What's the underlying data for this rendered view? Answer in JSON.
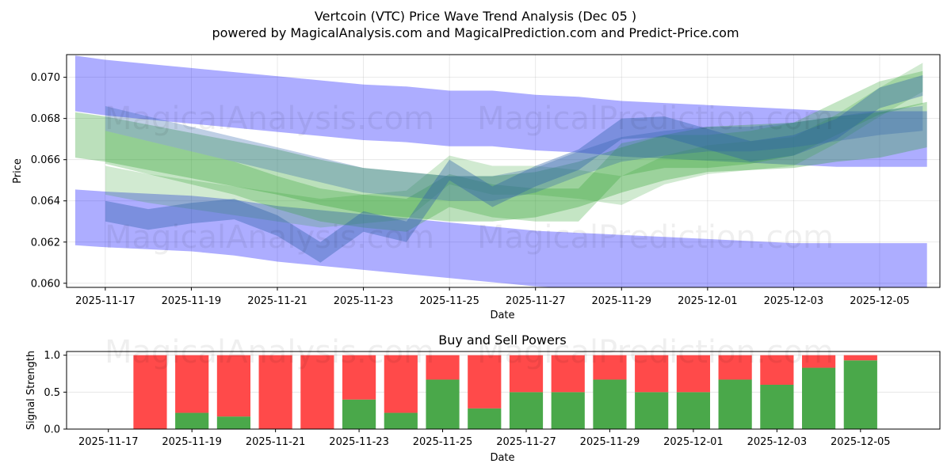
{
  "chart_data": [
    {
      "type": "area",
      "title": "Vertcoin (VTC) Price Wave Trend Analysis (Dec 05 )",
      "subtitle": "powered by MagicalAnalysis.com and MagicalPrediction.com and Predict-Price.com",
      "xlabel": "Date",
      "ylabel": "Price",
      "grid": true,
      "ylim": [
        0.0598,
        0.0711
      ],
      "xlim_days": [
        -0.9,
        19.4
      ],
      "x_start_date": "2025-11-17",
      "x_ticks": [
        "2025-11-17",
        "2025-11-19",
        "2025-11-21",
        "2025-11-23",
        "2025-11-25",
        "2025-11-27",
        "2025-11-29",
        "2025-12-01",
        "2025-12-03",
        "2025-12-05"
      ],
      "y_ticks": [
        "0.060",
        "0.062",
        "0.064",
        "0.066",
        "0.068",
        "0.070"
      ],
      "series": [
        {
          "name": "upper channel",
          "color": "#0000ff",
          "opacity": 0.32,
          "width": 0.0027,
          "x": [
            -0.7,
            0,
            1,
            2,
            3,
            4,
            5,
            6,
            7,
            8,
            9,
            10,
            11,
            12,
            13,
            14,
            15,
            16,
            17,
            18,
            19.1
          ],
          "y": [
            0.0697,
            0.0695,
            0.0693,
            0.0691,
            0.0689,
            0.0687,
            0.0685,
            0.0683,
            0.0682,
            0.068,
            0.068,
            0.0678,
            0.0677,
            0.0675,
            0.0674,
            0.0673,
            0.0672,
            0.0671,
            0.067,
            0.067,
            0.067
          ]
        },
        {
          "name": "lower channel",
          "color": "#0000ff",
          "opacity": 0.32,
          "width": 0.0027,
          "x": [
            -0.7,
            0,
            1,
            2,
            3,
            4,
            5,
            6,
            7,
            8,
            9,
            10,
            11,
            12,
            13,
            14,
            15,
            16,
            17,
            18,
            19.1
          ],
          "y": [
            0.0632,
            0.0631,
            0.063,
            0.0629,
            0.0627,
            0.0624,
            0.0622,
            0.062,
            0.0618,
            0.0616,
            0.0614,
            0.0612,
            0.0611,
            0.061,
            0.0609,
            0.0608,
            0.0607,
            0.0606,
            0.0606,
            0.0606,
            0.0606
          ]
        },
        {
          "name": "green trend",
          "color": "#2ca02c",
          "opacity": 0.32,
          "width": 0.0022,
          "x": [
            -0.7,
            0,
            1,
            2,
            3,
            4,
            5,
            6,
            7,
            8,
            9,
            10,
            11,
            12,
            13,
            14,
            15,
            16,
            17,
            18,
            19.1
          ],
          "y": [
            0.0672,
            0.067,
            0.0666,
            0.0662,
            0.0658,
            0.0654,
            0.0649,
            0.0645,
            0.0643,
            0.0641,
            0.0641,
            0.0643,
            0.0648,
            0.0655,
            0.0661,
            0.0665,
            0.0666,
            0.0667,
            0.067,
            0.0672,
            0.0677
          ]
        },
        {
          "name": "green wave",
          "color": "#2ca02c",
          "opacity": 0.28,
          "width": 0.0016,
          "x": [
            0,
            1,
            2,
            3,
            4,
            5,
            6,
            7,
            8,
            9,
            10,
            11,
            12,
            13,
            14,
            15,
            16,
            17,
            18,
            19
          ],
          "y": [
            0.0666,
            0.0661,
            0.0656,
            0.0651,
            0.0644,
            0.0638,
            0.0635,
            0.0633,
            0.0645,
            0.064,
            0.0638,
            0.0638,
            0.066,
            0.0664,
            0.0664,
            0.0666,
            0.067,
            0.068,
            0.069,
            0.0695
          ]
        },
        {
          "name": "green wave 2",
          "color": "#2ca02c",
          "opacity": 0.22,
          "width": 0.0014,
          "x": [
            0,
            1,
            2,
            3,
            4,
            5,
            6,
            7,
            8,
            9,
            10,
            11,
            12,
            13,
            14,
            15,
            16,
            17,
            18,
            19
          ],
          "y": [
            0.065,
            0.0646,
            0.0643,
            0.064,
            0.0637,
            0.0634,
            0.0636,
            0.0638,
            0.0655,
            0.065,
            0.065,
            0.0648,
            0.0645,
            0.0655,
            0.066,
            0.0662,
            0.0664,
            0.0675,
            0.0688,
            0.07
          ]
        },
        {
          "name": "blue wave",
          "color": "#2b5fa8",
          "opacity": 0.38,
          "width": 0.001,
          "x": [
            0,
            1,
            2,
            3,
            4,
            5,
            6,
            7,
            8,
            9,
            10,
            11,
            12,
            13,
            14,
            15,
            16,
            17,
            18,
            19
          ],
          "y": [
            0.0635,
            0.0631,
            0.0634,
            0.0636,
            0.0628,
            0.0615,
            0.063,
            0.0625,
            0.0655,
            0.0642,
            0.0652,
            0.066,
            0.0675,
            0.0676,
            0.067,
            0.0664,
            0.0667,
            0.0675,
            0.069,
            0.0696
          ]
        },
        {
          "name": "blue wave 2",
          "color": "#2b5fa8",
          "opacity": 0.3,
          "width": 0.0012,
          "x": [
            0,
            1,
            2,
            3,
            4,
            5,
            6,
            7,
            8,
            9,
            10,
            11,
            12,
            13,
            14,
            15,
            16,
            17,
            18,
            19
          ],
          "y": [
            0.068,
            0.0675,
            0.067,
            0.0665,
            0.066,
            0.0655,
            0.065,
            0.0648,
            0.0646,
            0.0646,
            0.065,
            0.0658,
            0.0665,
            0.0668,
            0.067,
            0.067,
            0.0672,
            0.0675,
            0.0678,
            0.068
          ]
        }
      ]
    },
    {
      "type": "bar",
      "title": "Buy and Sell Powers",
      "xlabel": "Date",
      "ylabel": "Signal Strength",
      "grid": true,
      "ylim": [
        0,
        1.05
      ],
      "xlim_days": [
        -1,
        19.9
      ],
      "x_start_date": "2025-11-17",
      "x_ticks": [
        "2025-11-17",
        "2025-11-19",
        "2025-11-21",
        "2025-11-23",
        "2025-11-25",
        "2025-11-27",
        "2025-11-29",
        "2025-12-01",
        "2025-12-03",
        "2025-12-05"
      ],
      "y_ticks": [
        "0.0",
        "0.5",
        "1.0"
      ],
      "categories": [
        "2025-11-18",
        "2025-11-19",
        "2025-11-20",
        "2025-11-21",
        "2025-11-22",
        "2025-11-23",
        "2025-11-24",
        "2025-11-25",
        "2025-11-26",
        "2025-11-27",
        "2025-11-28",
        "2025-11-29",
        "2025-11-30",
        "2025-12-01",
        "2025-12-02",
        "2025-12-03",
        "2025-12-04",
        "2025-12-05"
      ],
      "series": [
        {
          "name": "Buy",
          "color": "#4aa84a",
          "values": [
            0.0,
            0.22,
            0.17,
            0.0,
            0.0,
            0.4,
            0.22,
            0.67,
            0.28,
            0.5,
            0.5,
            0.67,
            0.5,
            0.5,
            0.67,
            0.6,
            0.83,
            0.93
          ]
        },
        {
          "name": "Sell",
          "color": "#ff4a4a",
          "values": [
            1.0,
            0.78,
            0.83,
            1.0,
            1.0,
            0.6,
            0.78,
            0.33,
            0.72,
            0.5,
            0.5,
            0.33,
            0.5,
            0.5,
            0.33,
            0.4,
            0.17,
            0.07
          ]
        }
      ]
    }
  ],
  "watermarks": [
    "MagicalAnalysis.com",
    "MagicalPrediction.com",
    "MagicalAnalysis.com",
    "MagicalPrediction.com",
    "MagicalAnalysis.com",
    "MagicalPrediction.com"
  ]
}
